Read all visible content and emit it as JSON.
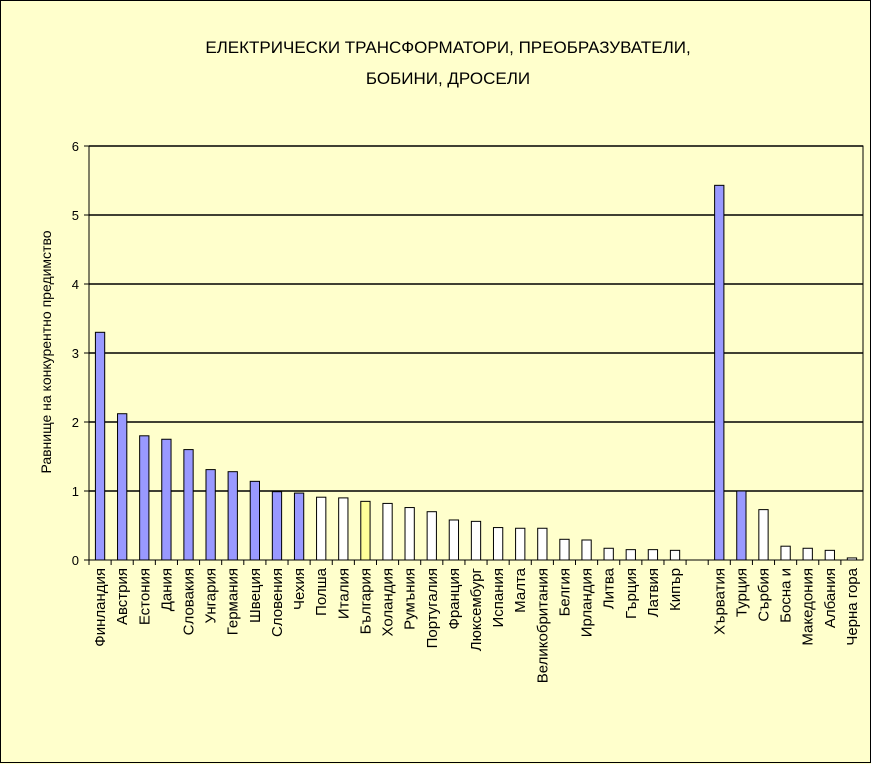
{
  "chart_data": {
    "type": "bar",
    "title_lines": [
      "ЕЛЕКТРИЧЕСКИ ТРАНСФОРМАТОРИ, ПРЕОБРАЗУВАТЕЛИ,",
      "БОБИНИ, ДРОСЕЛИ"
    ],
    "xlabel": "",
    "ylabel": "Равнище на конкурентно предимство",
    "ylim": [
      0,
      6
    ],
    "yticks": [
      "0",
      "1",
      "2",
      "3",
      "4",
      "5",
      "6"
    ],
    "grid": true,
    "legend": "none",
    "colors": {
      "purple": "#9999ff",
      "yellow": "#ffff99",
      "white": "#ffffff",
      "background": "#ffffcc"
    },
    "groups": [
      {
        "categories": [
          "Финландия",
          "Австрия",
          "Естония",
          "Дания",
          "Словакия",
          "Унгария",
          "Германия",
          "Швеция",
          "Словения",
          "Чехия",
          "Полша",
          "Италия",
          "България",
          "Холандия",
          "Румъния",
          "Португалия",
          "Франция",
          "Люксембург",
          "Испания",
          "Малта",
          "Великобритания",
          "Белгия",
          "Ирландия",
          "Литва",
          "Гърция",
          "Латвия",
          "Кипър"
        ],
        "values": [
          3.3,
          2.12,
          1.8,
          1.75,
          1.6,
          1.31,
          1.28,
          1.14,
          0.99,
          0.97,
          0.91,
          0.9,
          0.85,
          0.82,
          0.76,
          0.7,
          0.58,
          0.56,
          0.47,
          0.46,
          0.46,
          0.3,
          0.29,
          0.17,
          0.15,
          0.15,
          0.14
        ],
        "bar_colors": [
          "purple",
          "purple",
          "purple",
          "purple",
          "purple",
          "purple",
          "purple",
          "purple",
          "purple",
          "purple",
          "white",
          "white",
          "yellow",
          "white",
          "white",
          "white",
          "white",
          "white",
          "white",
          "white",
          "white",
          "white",
          "white",
          "white",
          "white",
          "white",
          "white"
        ]
      },
      {
        "categories": [
          "Хърватия",
          "Турция",
          "Сърбия",
          "Босна и",
          "Македония",
          "Албания",
          "Черна гора"
        ],
        "values": [
          5.43,
          1.0,
          0.73,
          0.2,
          0.17,
          0.14,
          0.03
        ],
        "bar_colors": [
          "purple",
          "purple",
          "white",
          "white",
          "white",
          "white",
          "white"
        ]
      }
    ]
  }
}
